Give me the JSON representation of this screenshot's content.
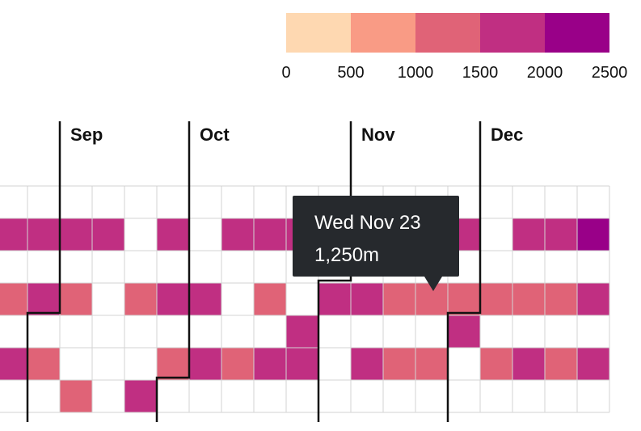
{
  "chart_data": {
    "type": "heatmap",
    "legend": {
      "ticks": [
        "0",
        "500",
        "1000",
        "1500",
        "2000",
        "2500"
      ],
      "colors": [
        "#fed8b1",
        "#f99b85",
        "#e06377",
        "#c02f82",
        "#990088"
      ]
    },
    "months": [
      "Sep",
      "Oct",
      "Nov",
      "Dec"
    ],
    "thresholds": [
      500,
      1000,
      1500,
      2000
    ],
    "rows": 7,
    "columns": 19,
    "values": [
      [
        0,
        0,
        0,
        0,
        0,
        0,
        0,
        0,
        0,
        0,
        0,
        0,
        0,
        0,
        0,
        0,
        0,
        0,
        0
      ],
      [
        1750,
        1750,
        1750,
        1750,
        0,
        1750,
        0,
        1750,
        1750,
        1750,
        1750,
        1750,
        1750,
        1750,
        1750,
        0,
        1750,
        1750,
        2250
      ],
      [
        0,
        0,
        0,
        0,
        0,
        0,
        0,
        0,
        0,
        0,
        0,
        0,
        0,
        0,
        0,
        0,
        0,
        0,
        0
      ],
      [
        1250,
        1750,
        1250,
        0,
        1250,
        1750,
        1750,
        0,
        1250,
        0,
        1750,
        1750,
        1250,
        1250,
        1250,
        1250,
        1250,
        1250,
        1750
      ],
      [
        0,
        0,
        0,
        0,
        0,
        0,
        0,
        0,
        0,
        1750,
        0,
        0,
        0,
        0,
        1750,
        0,
        0,
        0,
        0
      ],
      [
        1750,
        1250,
        0,
        0,
        0,
        1250,
        1750,
        1250,
        1750,
        1750,
        0,
        1750,
        1250,
        1250,
        0,
        1250,
        1750,
        1250,
        1750
      ],
      [
        0,
        0,
        1250,
        0,
        1750,
        0,
        0,
        0,
        0,
        0,
        0,
        0,
        0,
        0,
        0,
        0,
        0,
        0,
        0
      ]
    ]
  },
  "tooltip": {
    "date": "Wed Nov 23",
    "value": "1,250m"
  }
}
